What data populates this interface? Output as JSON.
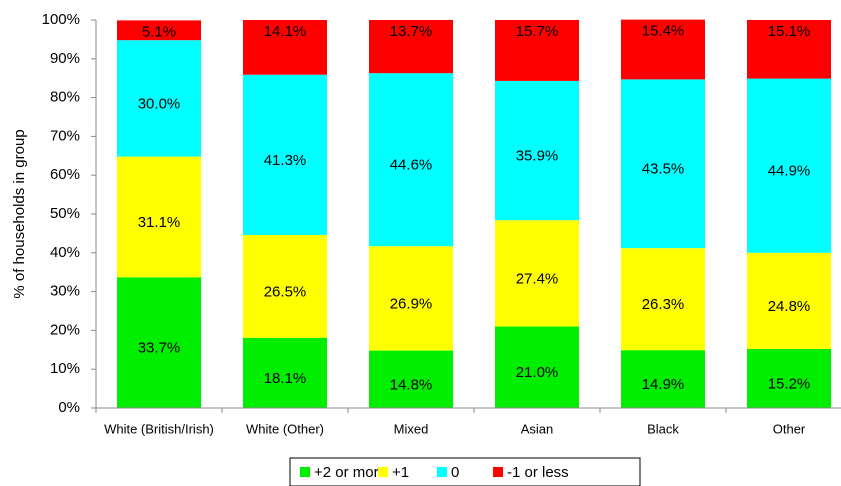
{
  "chart_data": {
    "type": "stacked_bar",
    "y_label": "% of households in group",
    "categories": [
      "White (British/Irish)",
      "White (Other)",
      "Mixed",
      "Asian",
      "Black",
      "Other"
    ],
    "series": [
      {
        "name": "+2 or more",
        "color": "#00ee00",
        "values": [
          33.7,
          18.1,
          14.8,
          21.0,
          14.9,
          15.2
        ],
        "value_labels": [
          "33.7%",
          "18.1%",
          "14.8%",
          "21.0%",
          "14.9%",
          "15.2%"
        ]
      },
      {
        "name": "+1",
        "color": "#ffff00",
        "values": [
          31.1,
          26.5,
          26.9,
          27.4,
          26.3,
          24.8
        ],
        "value_labels": [
          "31.1%",
          "26.5%",
          "26.9%",
          "27.4%",
          "26.3%",
          "24.8%"
        ]
      },
      {
        "name": "0",
        "color": "#00ffff",
        "values": [
          30.0,
          41.3,
          44.6,
          35.9,
          43.5,
          44.9
        ],
        "value_labels": [
          "30.0%",
          "41.3%",
          "44.6%",
          "35.9%",
          "43.5%",
          "44.9%"
        ]
      },
      {
        "name": "-1 or less",
        "color": "#ff0000",
        "values": [
          5.1,
          14.1,
          13.7,
          15.7,
          15.4,
          15.1
        ],
        "value_labels": [
          "5.1%",
          "14.1%",
          "13.7%",
          "15.7%",
          "15.4%",
          "15.1%"
        ]
      }
    ],
    "ylim": [
      0,
      100
    ],
    "yticks": [
      {
        "value": 0,
        "label": "0%"
      },
      {
        "value": 10,
        "label": "10%"
      },
      {
        "value": 20,
        "label": "20%"
      },
      {
        "value": 30,
        "label": "30%"
      },
      {
        "value": 40,
        "label": "40%"
      },
      {
        "value": 50,
        "label": "50%"
      },
      {
        "value": 60,
        "label": "60%"
      },
      {
        "value": 70,
        "label": "70%"
      },
      {
        "value": 80,
        "label": "80%"
      },
      {
        "value": 90,
        "label": "90%"
      },
      {
        "value": 100,
        "label": "100%"
      }
    ],
    "legend": "bottom"
  }
}
